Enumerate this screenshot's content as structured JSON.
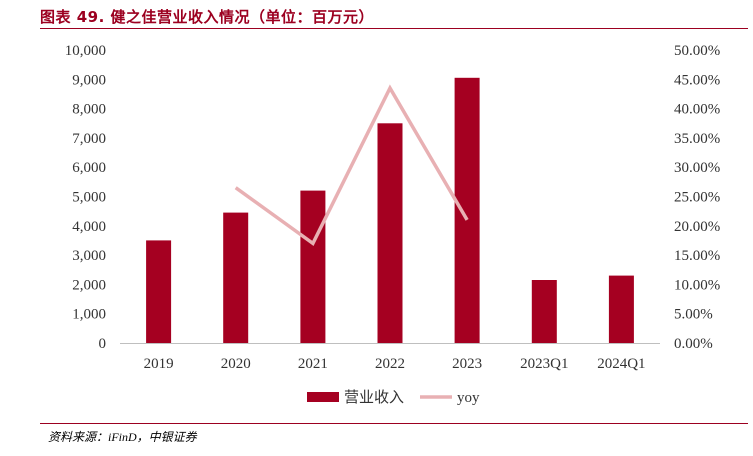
{
  "header": {
    "title": "图表 49. 健之佳营业收入情况（单位：百万元）"
  },
  "footer": {
    "source": "资料来源：iFinD，中银证券"
  },
  "colors": {
    "bar": "#a50021",
    "line": "#e8b0b3",
    "title": "#9c0020"
  },
  "chart_data": {
    "type": "bar",
    "title": "图表 49. 健之佳营业收入情况（单位：百万元）",
    "categories": [
      "2019",
      "2020",
      "2021",
      "2022",
      "2023",
      "2023Q1",
      "2024Q1"
    ],
    "series": [
      {
        "name": "营业收入",
        "type": "bar",
        "axis": "left",
        "values": [
          3500,
          4450,
          5200,
          7500,
          9050,
          2150,
          2300
        ]
      },
      {
        "name": "yoy",
        "type": "line",
        "axis": "right",
        "values": [
          null,
          0.265,
          0.17,
          0.435,
          0.21,
          null,
          null
        ]
      }
    ],
    "y_left": {
      "min": 0,
      "max": 10000,
      "step": 1000,
      "tick_labels": [
        "0",
        "1,000",
        "2,000",
        "3,000",
        "4,000",
        "5,000",
        "6,000",
        "7,000",
        "8,000",
        "9,000",
        "10,000"
      ]
    },
    "y_right": {
      "min": 0,
      "max": 0.5,
      "step": 0.05,
      "tick_labels": [
        "0.00%",
        "5.00%",
        "10.00%",
        "15.00%",
        "20.00%",
        "25.00%",
        "30.00%",
        "35.00%",
        "40.00%",
        "45.00%",
        "50.00%"
      ]
    },
    "legend": {
      "position": "bottom",
      "items": [
        "营业收入",
        "yoy"
      ]
    },
    "grid": false
  }
}
